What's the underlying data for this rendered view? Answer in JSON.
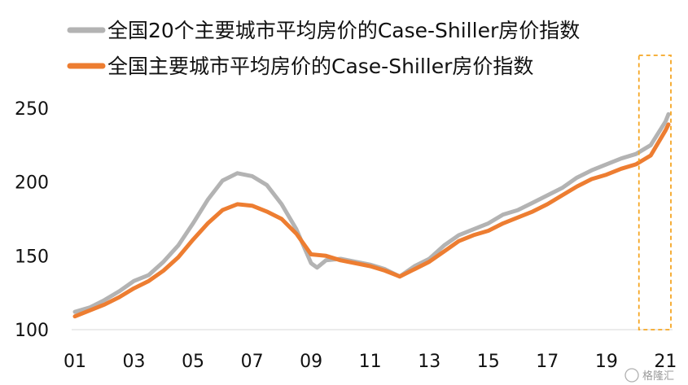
{
  "chart_data": {
    "type": "line",
    "title": "",
    "xlabel": "",
    "ylabel": "",
    "xlim": [
      2001.0,
      2021.1
    ],
    "ylim": [
      100,
      260
    ],
    "x_ticks": [
      {
        "label": "01",
        "x": 2001
      },
      {
        "label": "03",
        "x": 2003
      },
      {
        "label": "05",
        "x": 2005
      },
      {
        "label": "07",
        "x": 2007
      },
      {
        "label": "09",
        "x": 2009
      },
      {
        "label": "11",
        "x": 2011
      },
      {
        "label": "13",
        "x": 2013
      },
      {
        "label": "15",
        "x": 2015
      },
      {
        "label": "17",
        "x": 2017
      },
      {
        "label": "19",
        "x": 2019
      },
      {
        "label": "21",
        "x": 2021
      }
    ],
    "y_ticks": [
      100,
      150,
      200,
      250
    ],
    "grid": false,
    "legend_position": "top-left",
    "highlight": {
      "x_from": 2020.1,
      "x_to": 2021.1,
      "color": "#f5a623",
      "style": "dashed"
    },
    "series": [
      {
        "name": "全国20个主要城市平均房价的Case-Shiller房价指数",
        "color": "#b3b3b3",
        "points": [
          [
            2001.0,
            112
          ],
          [
            2001.5,
            115
          ],
          [
            2002.0,
            120
          ],
          [
            2002.5,
            126
          ],
          [
            2003.0,
            133
          ],
          [
            2003.5,
            137
          ],
          [
            2004.0,
            146
          ],
          [
            2004.5,
            157
          ],
          [
            2005.0,
            172
          ],
          [
            2005.5,
            188
          ],
          [
            2006.0,
            201
          ],
          [
            2006.5,
            206
          ],
          [
            2007.0,
            204
          ],
          [
            2007.5,
            198
          ],
          [
            2008.0,
            185
          ],
          [
            2008.5,
            168
          ],
          [
            2009.0,
            145
          ],
          [
            2009.2,
            142
          ],
          [
            2009.5,
            147
          ],
          [
            2010.0,
            148
          ],
          [
            2010.5,
            146
          ],
          [
            2011.0,
            144
          ],
          [
            2011.5,
            141
          ],
          [
            2012.0,
            136
          ],
          [
            2012.5,
            143
          ],
          [
            2013.0,
            148
          ],
          [
            2013.5,
            157
          ],
          [
            2014.0,
            164
          ],
          [
            2014.5,
            168
          ],
          [
            2015.0,
            172
          ],
          [
            2015.5,
            178
          ],
          [
            2016.0,
            181
          ],
          [
            2016.5,
            186
          ],
          [
            2017.0,
            191
          ],
          [
            2017.5,
            196
          ],
          [
            2018.0,
            203
          ],
          [
            2018.5,
            208
          ],
          [
            2019.0,
            212
          ],
          [
            2019.5,
            216
          ],
          [
            2020.0,
            219
          ],
          [
            2020.5,
            225
          ],
          [
            2021.0,
            241
          ],
          [
            2021.1,
            246
          ]
        ]
      },
      {
        "name": "全国主要城市平均房价的Case-Shiller房价指数",
        "color": "#ed7d31",
        "points": [
          [
            2001.0,
            109
          ],
          [
            2001.5,
            113
          ],
          [
            2002.0,
            117
          ],
          [
            2002.5,
            122
          ],
          [
            2003.0,
            128
          ],
          [
            2003.5,
            133
          ],
          [
            2004.0,
            140
          ],
          [
            2004.5,
            149
          ],
          [
            2005.0,
            161
          ],
          [
            2005.5,
            172
          ],
          [
            2006.0,
            181
          ],
          [
            2006.5,
            185
          ],
          [
            2007.0,
            184
          ],
          [
            2007.5,
            180
          ],
          [
            2008.0,
            175
          ],
          [
            2008.5,
            165
          ],
          [
            2009.0,
            151
          ],
          [
            2009.5,
            150
          ],
          [
            2010.0,
            147
          ],
          [
            2010.5,
            145
          ],
          [
            2011.0,
            143
          ],
          [
            2011.5,
            140
          ],
          [
            2012.0,
            136
          ],
          [
            2012.5,
            141
          ],
          [
            2013.0,
            146
          ],
          [
            2013.5,
            153
          ],
          [
            2014.0,
            160
          ],
          [
            2014.5,
            164
          ],
          [
            2015.0,
            167
          ],
          [
            2015.5,
            172
          ],
          [
            2016.0,
            176
          ],
          [
            2016.5,
            180
          ],
          [
            2017.0,
            185
          ],
          [
            2017.5,
            191
          ],
          [
            2018.0,
            197
          ],
          [
            2018.5,
            202
          ],
          [
            2019.0,
            205
          ],
          [
            2019.5,
            209
          ],
          [
            2020.0,
            212
          ],
          [
            2020.5,
            218
          ],
          [
            2021.0,
            235
          ],
          [
            2021.1,
            239
          ]
        ]
      }
    ]
  },
  "watermark": "格隆汇"
}
